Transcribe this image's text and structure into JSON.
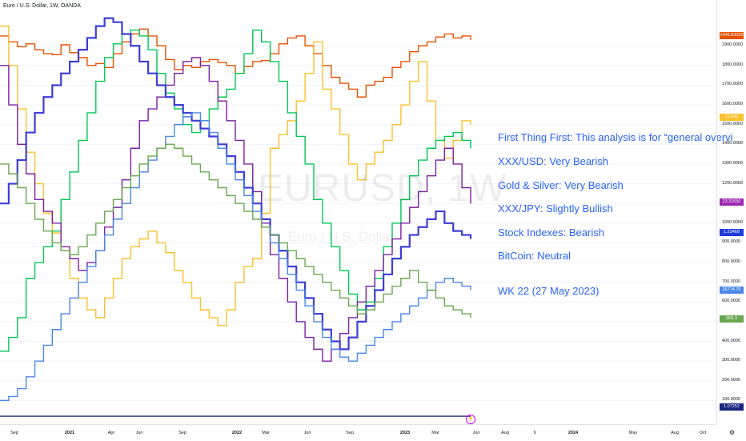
{
  "header": {
    "title": "Euro / U.S. Dollar, 1W, OANDA"
  },
  "watermark": {
    "symbol": "EURUSD, 1W",
    "name": "Euro / U.S. Dollar"
  },
  "notes": [
    "First Thing First: This analysis is for “general overvi",
    "XXX/USD: Very Bearish",
    "Gold & Silver: Very Bearish",
    "XXX/JPY: Slightly Bullish",
    "Stock Indexes: Bearish",
    "BitCoin: Neutral",
    "WK 22 (27 May 2023)"
  ],
  "chart_data": {
    "type": "line",
    "x_ticks": [
      "Sep",
      "2021",
      "Apr",
      "Jun",
      "Sep",
      "2022",
      "Mar",
      "Jun",
      "Sep",
      "2023",
      "Mar",
      "Jun",
      "Aug",
      "9",
      "2024",
      "May",
      "Aug",
      "Oct"
    ],
    "y_ticks": [
      "1900.0000",
      "1800.0000",
      "1700.0000",
      "1600.0000",
      "1500.0000",
      "1400.0000",
      "1300.0000",
      "1200.0000",
      "1100.0000",
      "1000.0000",
      "900.0000",
      "800.0000",
      "700.0000",
      "600.0000",
      "500.0000",
      "400.0000",
      "300.0000",
      "200.0000",
      "100.0000"
    ],
    "ylim": [
      0,
      2100
    ],
    "price_labels": [
      {
        "text": "1946.93000",
        "color": "#e65100"
      },
      {
        "text": "91.646",
        "color": "#fbc02d"
      },
      {
        "text": "23.31650",
        "color": "#9c27b0"
      },
      {
        "text": "1.23468",
        "color": "#1e3cd8"
      },
      {
        "text": "26774.70",
        "color": "#4a86e8"
      },
      {
        "text": "555.3",
        "color": "#6aa84f"
      },
      {
        "text": "1.07252",
        "color": "#1a237e"
      }
    ],
    "series": [
      {
        "color": "#e65100",
        "values": [
          1950,
          1920,
          1895,
          1910,
          1880,
          1860,
          1855,
          1905,
          1865,
          1840,
          1800,
          1810,
          1790,
          1860,
          1920,
          1960,
          1985,
          1950,
          1900,
          1830,
          1780,
          1800,
          1790,
          1820,
          1830,
          1815,
          1800,
          1760,
          1795,
          1820,
          1825,
          1860,
          1910,
          1940,
          1950,
          1900,
          1860,
          1800,
          1740,
          1710,
          1680,
          1640,
          1700,
          1720,
          1740,
          1790,
          1820,
          1870,
          1900,
          1920,
          1945,
          1960,
          1940,
          1950,
          1930
        ]
      },
      {
        "color": "#fbc02d",
        "values": [
          2000,
          1800,
          1580,
          1360,
          1200,
          1050,
          950,
          860,
          720,
          620,
          560,
          520,
          620,
          720,
          820,
          880,
          920,
          960,
          900,
          850,
          760,
          700,
          620,
          560,
          520,
          480,
          560,
          700,
          780,
          820,
          1050,
          1380,
          1450,
          1520,
          1620,
          1760,
          1920,
          1680,
          1580,
          1450,
          1300,
          1220,
          1300,
          1360,
          1420,
          1500,
          1600,
          1720,
          1820,
          1620,
          1420,
          1330,
          1420,
          1520,
          1500
        ]
      },
      {
        "color": "#00c853",
        "values": [
          350,
          420,
          520,
          720,
          800,
          880,
          960,
          1120,
          1260,
          1420,
          1560,
          1720,
          1840,
          1910,
          1960,
          1980,
          1950,
          1880,
          1760,
          1660,
          1580,
          1500,
          1460,
          1520,
          1580,
          1640,
          1680,
          1760,
          1860,
          1980,
          1920,
          1820,
          1720,
          1560,
          1440,
          1300,
          1120,
          1000,
          880,
          760,
          640,
          560,
          600,
          720,
          880,
          1000,
          1120,
          1240,
          1320,
          1380,
          1420,
          1440,
          1460,
          1420,
          1380
        ]
      },
      {
        "color": "#7b1fa2",
        "values": [
          1800,
          1600,
          1400,
          1250,
          1120,
          1060,
          1000,
          880,
          820,
          760,
          800,
          860,
          980,
          1080,
          1220,
          1380,
          1520,
          1580,
          1640,
          1700,
          1760,
          1820,
          1840,
          1800,
          1720,
          1620,
          1520,
          1420,
          1300,
          1160,
          1000,
          840,
          720,
          600,
          500,
          420,
          360,
          300,
          360,
          440,
          520,
          600,
          680,
          760,
          840,
          920,
          1000,
          1080,
          1160,
          1240,
          1320,
          1380,
          1300,
          1180,
          1100
        ]
      },
      {
        "color": "#3d3dd6",
        "values": [
          1100,
          1200,
          1320,
          1460,
          1560,
          1640,
          1700,
          1760,
          1820,
          1880,
          1940,
          2000,
          2040,
          2020,
          1960,
          1900,
          1820,
          1760,
          1700,
          1640,
          1600,
          1560,
          1520,
          1480,
          1440,
          1400,
          1340,
          1260,
          1180,
          1100,
          1020,
          940,
          860,
          780,
          700,
          620,
          540,
          460,
          400,
          360,
          420,
          500,
          580,
          660,
          740,
          820,
          880,
          940,
          980,
          1020,
          1060,
          1000,
          960,
          940,
          920
        ]
      },
      {
        "color": "#4a86e8",
        "values": [
          100,
          120,
          160,
          220,
          300,
          380,
          460,
          540,
          620,
          700,
          780,
          860,
          940,
          1020,
          1100,
          1180,
          1260,
          1320,
          1380,
          1440,
          1500,
          1540,
          1560,
          1520,
          1460,
          1380,
          1300,
          1220,
          1140,
          1060,
          980,
          900,
          820,
          740,
          660,
          580,
          500,
          420,
          360,
          320,
          300,
          340,
          380,
          420,
          460,
          500,
          540,
          580,
          620,
          660,
          700,
          720,
          700,
          680,
          660
        ]
      },
      {
        "color": "#6aa84f",
        "values": [
          1300,
          1250,
          1180,
          1100,
          1020,
          960,
          900,
          860,
          840,
          880,
          940,
          1000,
          1060,
          1120,
          1180,
          1240,
          1300,
          1340,
          1380,
          1400,
          1380,
          1340,
          1300,
          1260,
          1220,
          1180,
          1140,
          1100,
          1060,
          1020,
          980,
          940,
          900,
          860,
          820,
          780,
          740,
          700,
          660,
          620,
          580,
          540,
          560,
          600,
          640,
          680,
          720,
          760,
          700,
          660,
          620,
          580,
          560,
          540,
          520
        ]
      },
      {
        "color": "#1a237e",
        "values": [
          20,
          20,
          20,
          20,
          20,
          20,
          20,
          20,
          20,
          20,
          20,
          20,
          20,
          20,
          20,
          20,
          20,
          20,
          20,
          20,
          20,
          20,
          20,
          20,
          20,
          20,
          20,
          20,
          20,
          20,
          20,
          20,
          20,
          20,
          20,
          20,
          20,
          20,
          20,
          20,
          20,
          20,
          20,
          20,
          20,
          20,
          20,
          20,
          20,
          20,
          20,
          20,
          20,
          20,
          20
        ]
      }
    ]
  }
}
